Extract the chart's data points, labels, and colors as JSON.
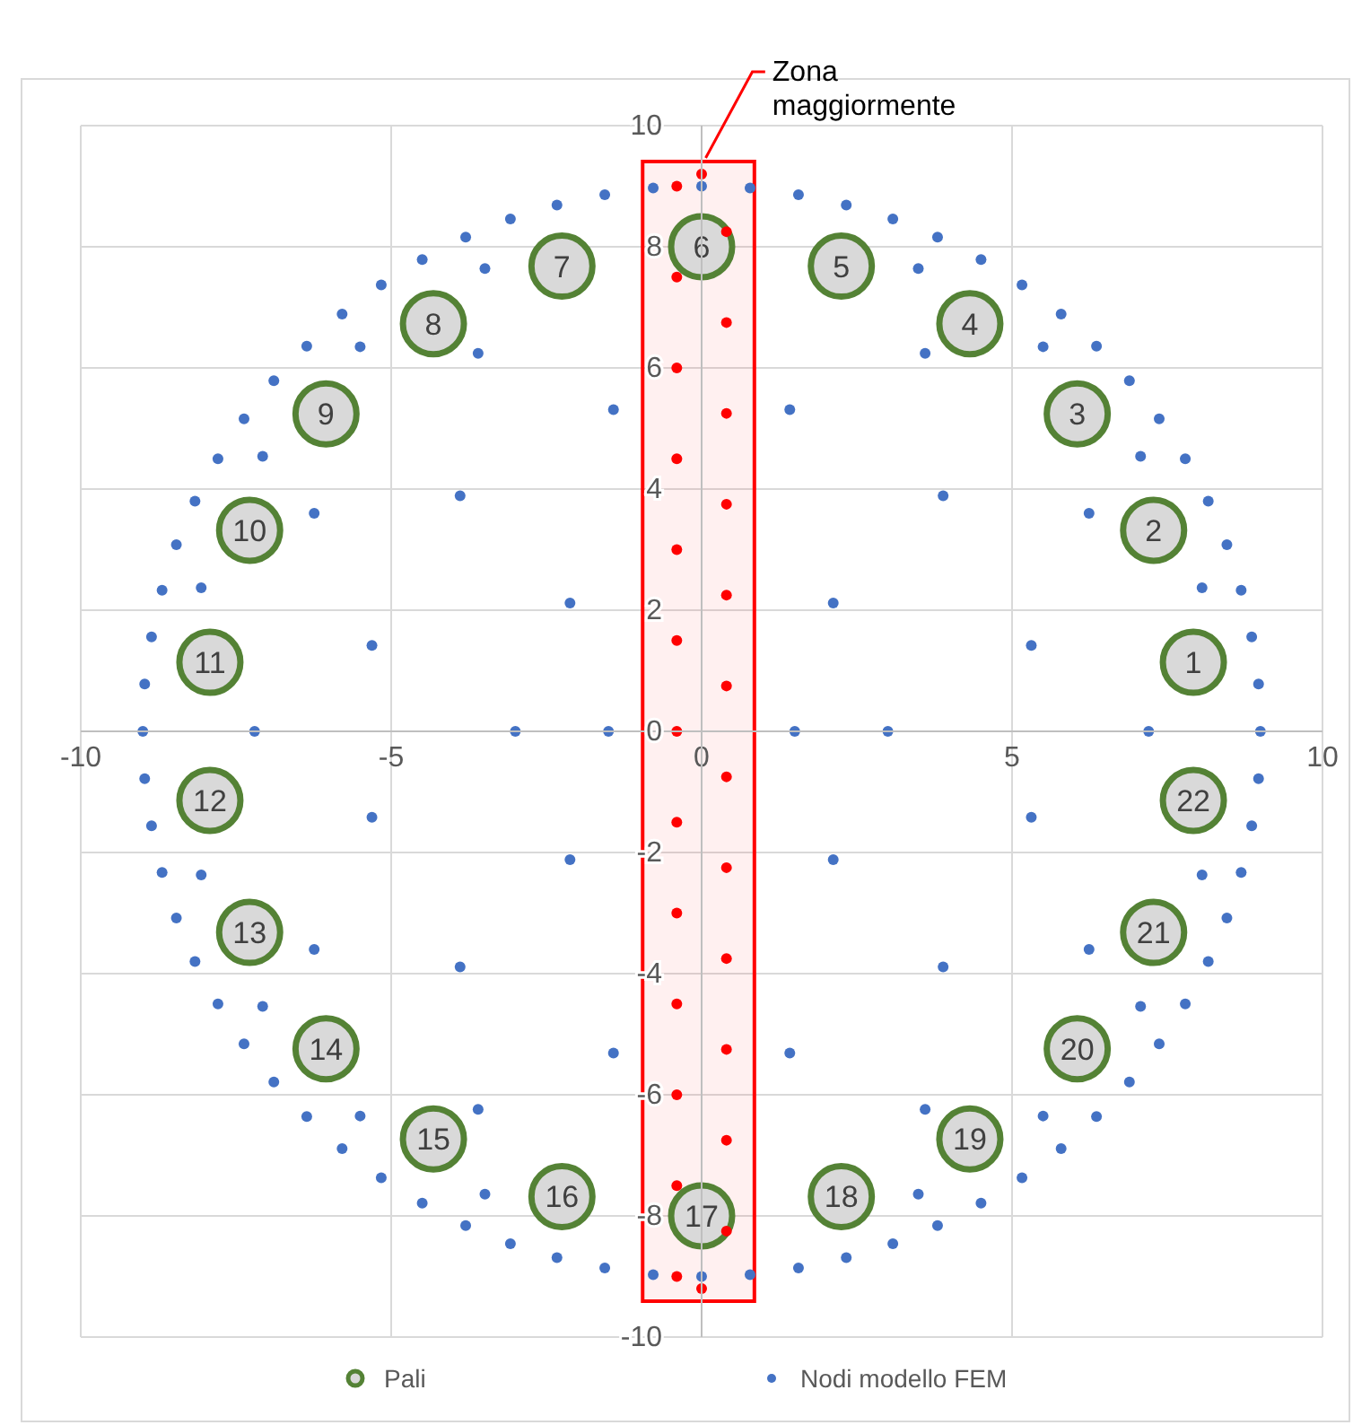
{
  "chart_data": {
    "type": "scatter",
    "xlim": [
      -10,
      10
    ],
    "ylim": [
      -10,
      10
    ],
    "xticks": [
      -10,
      -5,
      0,
      5,
      10
    ],
    "yticks": [
      -10,
      -8,
      -6,
      -4,
      -2,
      0,
      2,
      4,
      6,
      8,
      10
    ],
    "grid": true,
    "legend": "bottom",
    "series": [
      {
        "name": "Pali",
        "marker": "circle",
        "color": "#548235",
        "x": [
          7.92,
          7.28,
          6.05,
          4.32,
          2.25,
          0,
          -2.25,
          -4.32,
          -6.05,
          -7.28,
          -7.92,
          -7.92,
          -7.28,
          -6.05,
          -4.32,
          -2.25,
          0,
          2.25,
          4.32,
          6.05,
          7.28,
          7.92
        ],
        "values": [
          1.14,
          3.32,
          5.24,
          6.73,
          7.68,
          8,
          7.68,
          6.73,
          5.24,
          3.32,
          1.14,
          -1.14,
          -3.32,
          -5.24,
          -6.73,
          -7.68,
          -8,
          -7.68,
          -6.73,
          -5.24,
          -3.32,
          -1.14
        ]
      },
      {
        "name": "Nodi modello FEM",
        "marker": "circle",
        "color": "#4472c4",
        "x": [
          9,
          8.97,
          8.86,
          8.69,
          8.46,
          8.16,
          7.79,
          7.37,
          6.89,
          6.36,
          5.79,
          5.16,
          4.5,
          3.8,
          3.08,
          2.33,
          1.56,
          0.78,
          0,
          -0.78,
          -1.56,
          -2.33,
          -3.08,
          -3.8,
          -4.5,
          -5.16,
          -5.79,
          -6.36,
          -6.89,
          -7.37,
          -7.79,
          -8.16,
          -8.46,
          -8.69,
          -8.86,
          -8.97,
          -9,
          -8.97,
          -8.86,
          -8.69,
          -8.46,
          -8.16,
          -7.79,
          -7.37,
          -6.89,
          -6.36,
          -5.79,
          -5.16,
          -4.5,
          -3.8,
          -3.08,
          -2.33,
          -1.56,
          -0.78,
          0,
          0.78,
          1.56,
          2.33,
          3.08,
          3.8,
          4.5,
          5.16,
          5.79,
          6.36,
          6.89,
          7.37,
          7.79,
          8.16,
          8.46,
          8.69,
          8.86,
          8.97,
          5.31,
          3.89,
          1.42,
          -5.31,
          -3.89,
          -1.42,
          -5.31,
          -3.89,
          -1.42,
          5.31,
          3.89,
          1.42,
          3,
          2.12,
          -2.12,
          -3,
          -2.12,
          2.12,
          6.24,
          3.6,
          -6.24,
          -3.6,
          -6.24,
          -3.6,
          6.24,
          3.6,
          7.2,
          -7.2,
          8.06,
          7.07,
          5.5,
          3.49,
          -8.06,
          -7.07,
          -5.5,
          -3.49,
          -8.06,
          -7.07,
          -5.5,
          -3.49,
          8.06,
          7.07,
          5.5,
          3.49,
          1.5,
          -1.5
        ],
        "values": [
          0,
          0.78,
          1.56,
          2.33,
          3.08,
          3.8,
          4.5,
          5.16,
          5.79,
          6.36,
          6.89,
          7.37,
          7.79,
          8.16,
          8.46,
          8.69,
          8.86,
          8.97,
          9,
          8.97,
          8.86,
          8.69,
          8.46,
          8.16,
          7.79,
          7.37,
          6.89,
          6.36,
          5.79,
          5.16,
          4.5,
          3.8,
          3.08,
          2.33,
          1.56,
          0.78,
          0,
          -0.78,
          -1.56,
          -2.33,
          -3.08,
          -3.8,
          -4.5,
          -5.16,
          -5.79,
          -6.36,
          -6.89,
          -7.37,
          -7.79,
          -8.16,
          -8.46,
          -8.69,
          -8.86,
          -8.97,
          -9,
          -8.97,
          -8.86,
          -8.69,
          -8.46,
          -8.16,
          -7.79,
          -7.37,
          -6.89,
          -6.36,
          -5.79,
          -5.16,
          -4.5,
          -3.8,
          -3.08,
          -2.33,
          -1.56,
          -0.78,
          1.42,
          3.89,
          5.31,
          1.42,
          3.89,
          5.31,
          -1.42,
          -3.89,
          -5.31,
          -1.42,
          -3.89,
          -5.31,
          0,
          2.12,
          2.12,
          0,
          -2.12,
          -2.12,
          3.6,
          6.24,
          3.6,
          6.24,
          -3.6,
          -6.24,
          -3.6,
          -6.24,
          0,
          0,
          2.37,
          4.54,
          6.35,
          7.64,
          2.37,
          4.54,
          6.35,
          7.64,
          -2.37,
          -4.54,
          -6.35,
          -7.64,
          -2.37,
          -4.54,
          -6.35,
          -7.64,
          0,
          0
        ]
      },
      {
        "marker": "circle",
        "color": "#ff0000",
        "x": [
          -0.4,
          -0.4,
          -0.4,
          -0.4,
          -0.4,
          -0.4,
          -0.4,
          -0.4,
          -0.4,
          -0.4,
          -0.4,
          -0.4,
          -0.4,
          0.4,
          0.4,
          0.4,
          0.4,
          0.4,
          0.4,
          0.4,
          0.4,
          0.4,
          0.4,
          0.4,
          0.4,
          0,
          0
        ],
        "values": [
          -9,
          -7.5,
          -6,
          -4.5,
          -3,
          -1.5,
          0,
          1.5,
          3,
          4.5,
          6,
          7.5,
          9,
          -8.25,
          -6.75,
          -5.25,
          -3.75,
          -2.25,
          -0.75,
          0.75,
          2.25,
          3.75,
          5.25,
          6.75,
          8.25,
          9.2,
          -9.2
        ]
      }
    ],
    "bands": [
      {
        "axis": "x",
        "from": -0.95,
        "to": 0.85,
        "label": "Zona maggiormente",
        "color": "#ff0000"
      }
    ],
    "annotations": [
      {
        "text": "1",
        "x": 7.92,
        "y": 1.14
      },
      {
        "text": "2",
        "x": 7.28,
        "y": 3.32
      },
      {
        "text": "3",
        "x": 6.05,
        "y": 5.24
      },
      {
        "text": "4",
        "x": 4.32,
        "y": 6.73
      },
      {
        "text": "5",
        "x": 2.25,
        "y": 7.68
      },
      {
        "text": "6",
        "x": 0,
        "y": 8
      },
      {
        "text": "7",
        "x": -2.25,
        "y": 7.68
      },
      {
        "text": "8",
        "x": -4.32,
        "y": 6.73
      },
      {
        "text": "9",
        "x": -6.05,
        "y": 5.24
      },
      {
        "text": "10",
        "x": -7.28,
        "y": 3.32
      },
      {
        "text": "11",
        "x": -7.92,
        "y": 1.14
      },
      {
        "text": "12",
        "x": -7.92,
        "y": -1.14
      },
      {
        "text": "13",
        "x": -7.28,
        "y": -3.32
      },
      {
        "text": "14",
        "x": -6.05,
        "y": -5.24
      },
      {
        "text": "15",
        "x": -4.32,
        "y": -6.73
      },
      {
        "text": "16",
        "x": -2.25,
        "y": -7.68
      },
      {
        "text": "17",
        "x": 0,
        "y": -8
      },
      {
        "text": "18",
        "x": 2.25,
        "y": -7.68
      },
      {
        "text": "19",
        "x": 4.32,
        "y": -6.73
      },
      {
        "text": "20",
        "x": 6.05,
        "y": -5.24
      },
      {
        "text": "21",
        "x": 7.28,
        "y": -3.32
      },
      {
        "text": "22",
        "x": 7.92,
        "y": -1.14
      }
    ]
  }
}
